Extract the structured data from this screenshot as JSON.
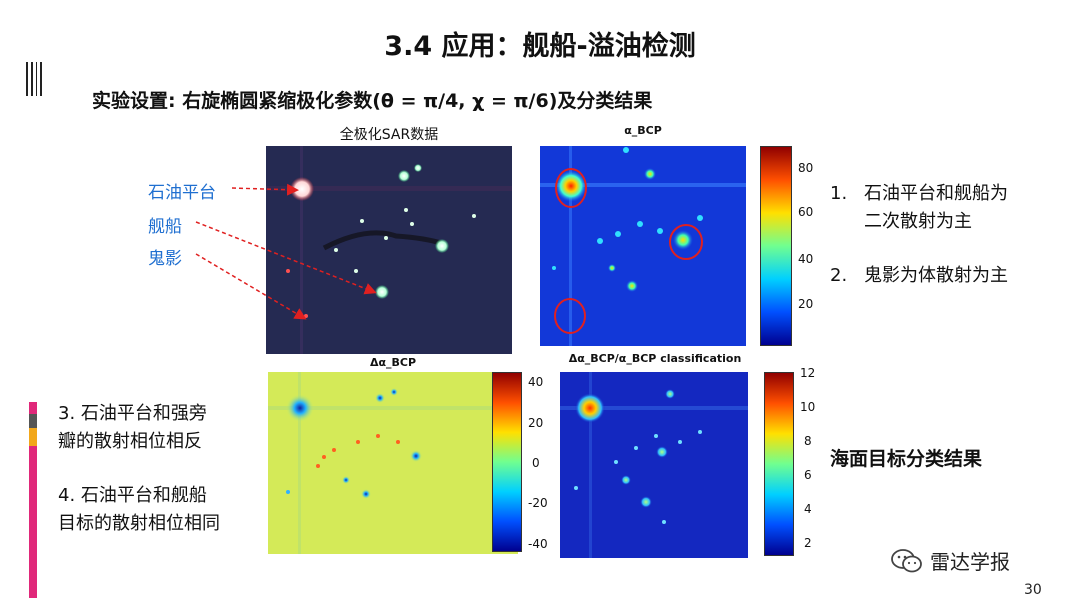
{
  "slide": {
    "title": "3.4 应用：舰船-溢油检测",
    "subtitle": "实验设置: 右旋椭圆紧缩极化参数(θ = π/4,   χ = π/6)及分类结果",
    "page_number": "30"
  },
  "panels": {
    "sar_title": "全极化SAR数据",
    "alpha_title": "α_BCP",
    "delta_title": "Δα_BCP",
    "class_title": "Δα_BCP/α_BCP classification"
  },
  "labels": {
    "platform": "石油平台",
    "ship": "舰船",
    "ghost": "鬼影"
  },
  "colorbars": {
    "alpha": [
      "80",
      "60",
      "40",
      "20"
    ],
    "delta": [
      "40",
      "20",
      "0",
      "-20",
      "-40"
    ],
    "class": [
      "12",
      "10",
      "8",
      "6",
      "4",
      "2"
    ]
  },
  "notes": {
    "n1_num": "1.",
    "n1_line1": "石油平台和舰船为",
    "n1_line2": "二次散射为主",
    "n2_num": "2.",
    "n2_text": "鬼影为体散射为主",
    "n3_line1": "3.  石油平台和强旁",
    "n3_line2": "瓣的散射相位相反",
    "n4_line1": "4.  石油平台和舰船",
    "n4_line2": "目标的散射相位相同",
    "sea_result": "海面目标分类结果"
  },
  "footer": {
    "brand": "雷达学报",
    "icon": "wechat-icon"
  },
  "colors": {
    "accent_blue": "#1f6fd0",
    "side_magenta": "#e0287a",
    "side_orange": "#f2a71b",
    "side_gray": "#555555"
  }
}
